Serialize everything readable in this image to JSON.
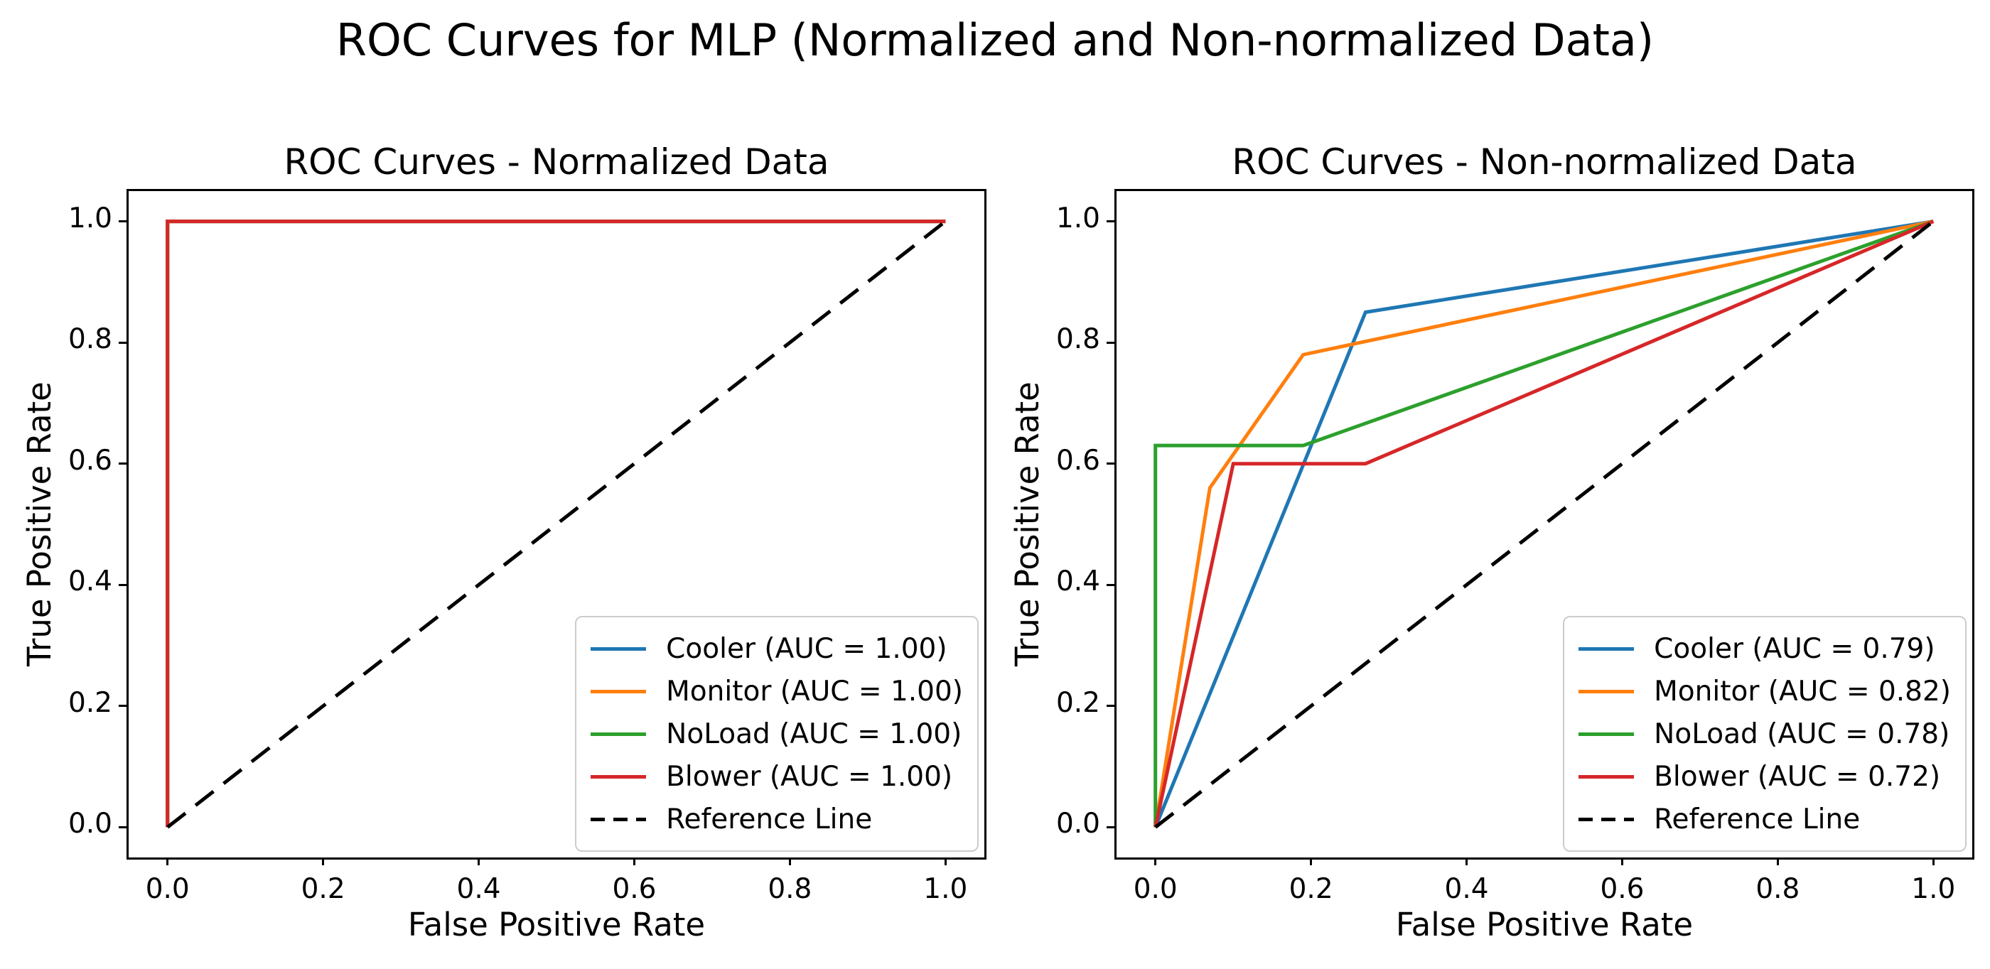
{
  "figure": {
    "suptitle": "ROC Curves for MLP (Normalized and Non-normalized Data)"
  },
  "colors": {
    "cooler": "#1f77b4",
    "monitor": "#ff7f0e",
    "noload": "#2ca02c",
    "blower": "#d62728",
    "reference": "#000000",
    "legend_border": "#cccccc",
    "text": "#000000"
  },
  "chart_data": [
    {
      "type": "line",
      "title": "ROC Curves - Normalized Data",
      "xlabel": "False Positive Rate",
      "ylabel": "True Positive Rate",
      "xlim": [
        -0.05,
        1.05
      ],
      "ylim": [
        -0.05,
        1.05
      ],
      "x_ticks": [
        "0.0",
        "0.2",
        "0.4",
        "0.6",
        "0.8",
        "1.0"
      ],
      "y_ticks": [
        "0.0",
        "0.2",
        "0.4",
        "0.6",
        "0.8",
        "1.0"
      ],
      "grid": false,
      "legend_position": "lower right",
      "series": [
        {
          "name": "Cooler",
          "label": "Cooler (AUC = 1.00)",
          "auc": 1.0,
          "color": "#1f77b4",
          "points": [
            [
              0,
              0
            ],
            [
              0,
              1
            ],
            [
              1,
              1
            ]
          ]
        },
        {
          "name": "Monitor",
          "label": "Monitor (AUC = 1.00)",
          "auc": 1.0,
          "color": "#ff7f0e",
          "points": [
            [
              0,
              0
            ],
            [
              0,
              1
            ],
            [
              1,
              1
            ]
          ]
        },
        {
          "name": "NoLoad",
          "label": "NoLoad (AUC = 1.00)",
          "auc": 1.0,
          "color": "#2ca02c",
          "points": [
            [
              0,
              0
            ],
            [
              0,
              1
            ],
            [
              1,
              1
            ]
          ]
        },
        {
          "name": "Blower",
          "label": "Blower (AUC = 1.00)",
          "auc": 1.0,
          "color": "#d62728",
          "points": [
            [
              0,
              0
            ],
            [
              0,
              1
            ],
            [
              1,
              1
            ]
          ]
        }
      ],
      "reference": {
        "label": "Reference Line",
        "color": "#000000",
        "style": "dashed",
        "points": [
          [
            0,
            0
          ],
          [
            1,
            1
          ]
        ]
      }
    },
    {
      "type": "line",
      "title": "ROC Curves - Non-normalized Data",
      "xlabel": "False Positive Rate",
      "ylabel": "True Positive Rate",
      "xlim": [
        -0.05,
        1.05
      ],
      "ylim": [
        -0.05,
        1.05
      ],
      "x_ticks": [
        "0.0",
        "0.2",
        "0.4",
        "0.6",
        "0.8",
        "1.0"
      ],
      "y_ticks": [
        "0.0",
        "0.2",
        "0.4",
        "0.6",
        "0.8",
        "1.0"
      ],
      "grid": false,
      "legend_position": "lower right",
      "series": [
        {
          "name": "Cooler",
          "label": "Cooler (AUC = 0.79)",
          "auc": 0.79,
          "color": "#1f77b4",
          "points": [
            [
              0,
              0
            ],
            [
              0.27,
              0.85
            ],
            [
              1,
              1
            ]
          ]
        },
        {
          "name": "Monitor",
          "label": "Monitor (AUC = 0.82)",
          "auc": 0.82,
          "color": "#ff7f0e",
          "points": [
            [
              0,
              0
            ],
            [
              0.07,
              0.56
            ],
            [
              0.19,
              0.78
            ],
            [
              1,
              1
            ]
          ]
        },
        {
          "name": "NoLoad",
          "label": "NoLoad (AUC = 0.78)",
          "auc": 0.78,
          "color": "#2ca02c",
          "points": [
            [
              0,
              0
            ],
            [
              0,
              0.63
            ],
            [
              0.19,
              0.63
            ],
            [
              1,
              1
            ]
          ]
        },
        {
          "name": "Blower",
          "label": "Blower (AUC = 0.72)",
          "auc": 0.72,
          "color": "#d62728",
          "points": [
            [
              0,
              0
            ],
            [
              0.1,
              0.6
            ],
            [
              0.27,
              0.6
            ],
            [
              1,
              1
            ]
          ]
        }
      ],
      "reference": {
        "label": "Reference Line",
        "color": "#000000",
        "style": "dashed",
        "points": [
          [
            0,
            0
          ],
          [
            1,
            1
          ]
        ]
      }
    }
  ]
}
